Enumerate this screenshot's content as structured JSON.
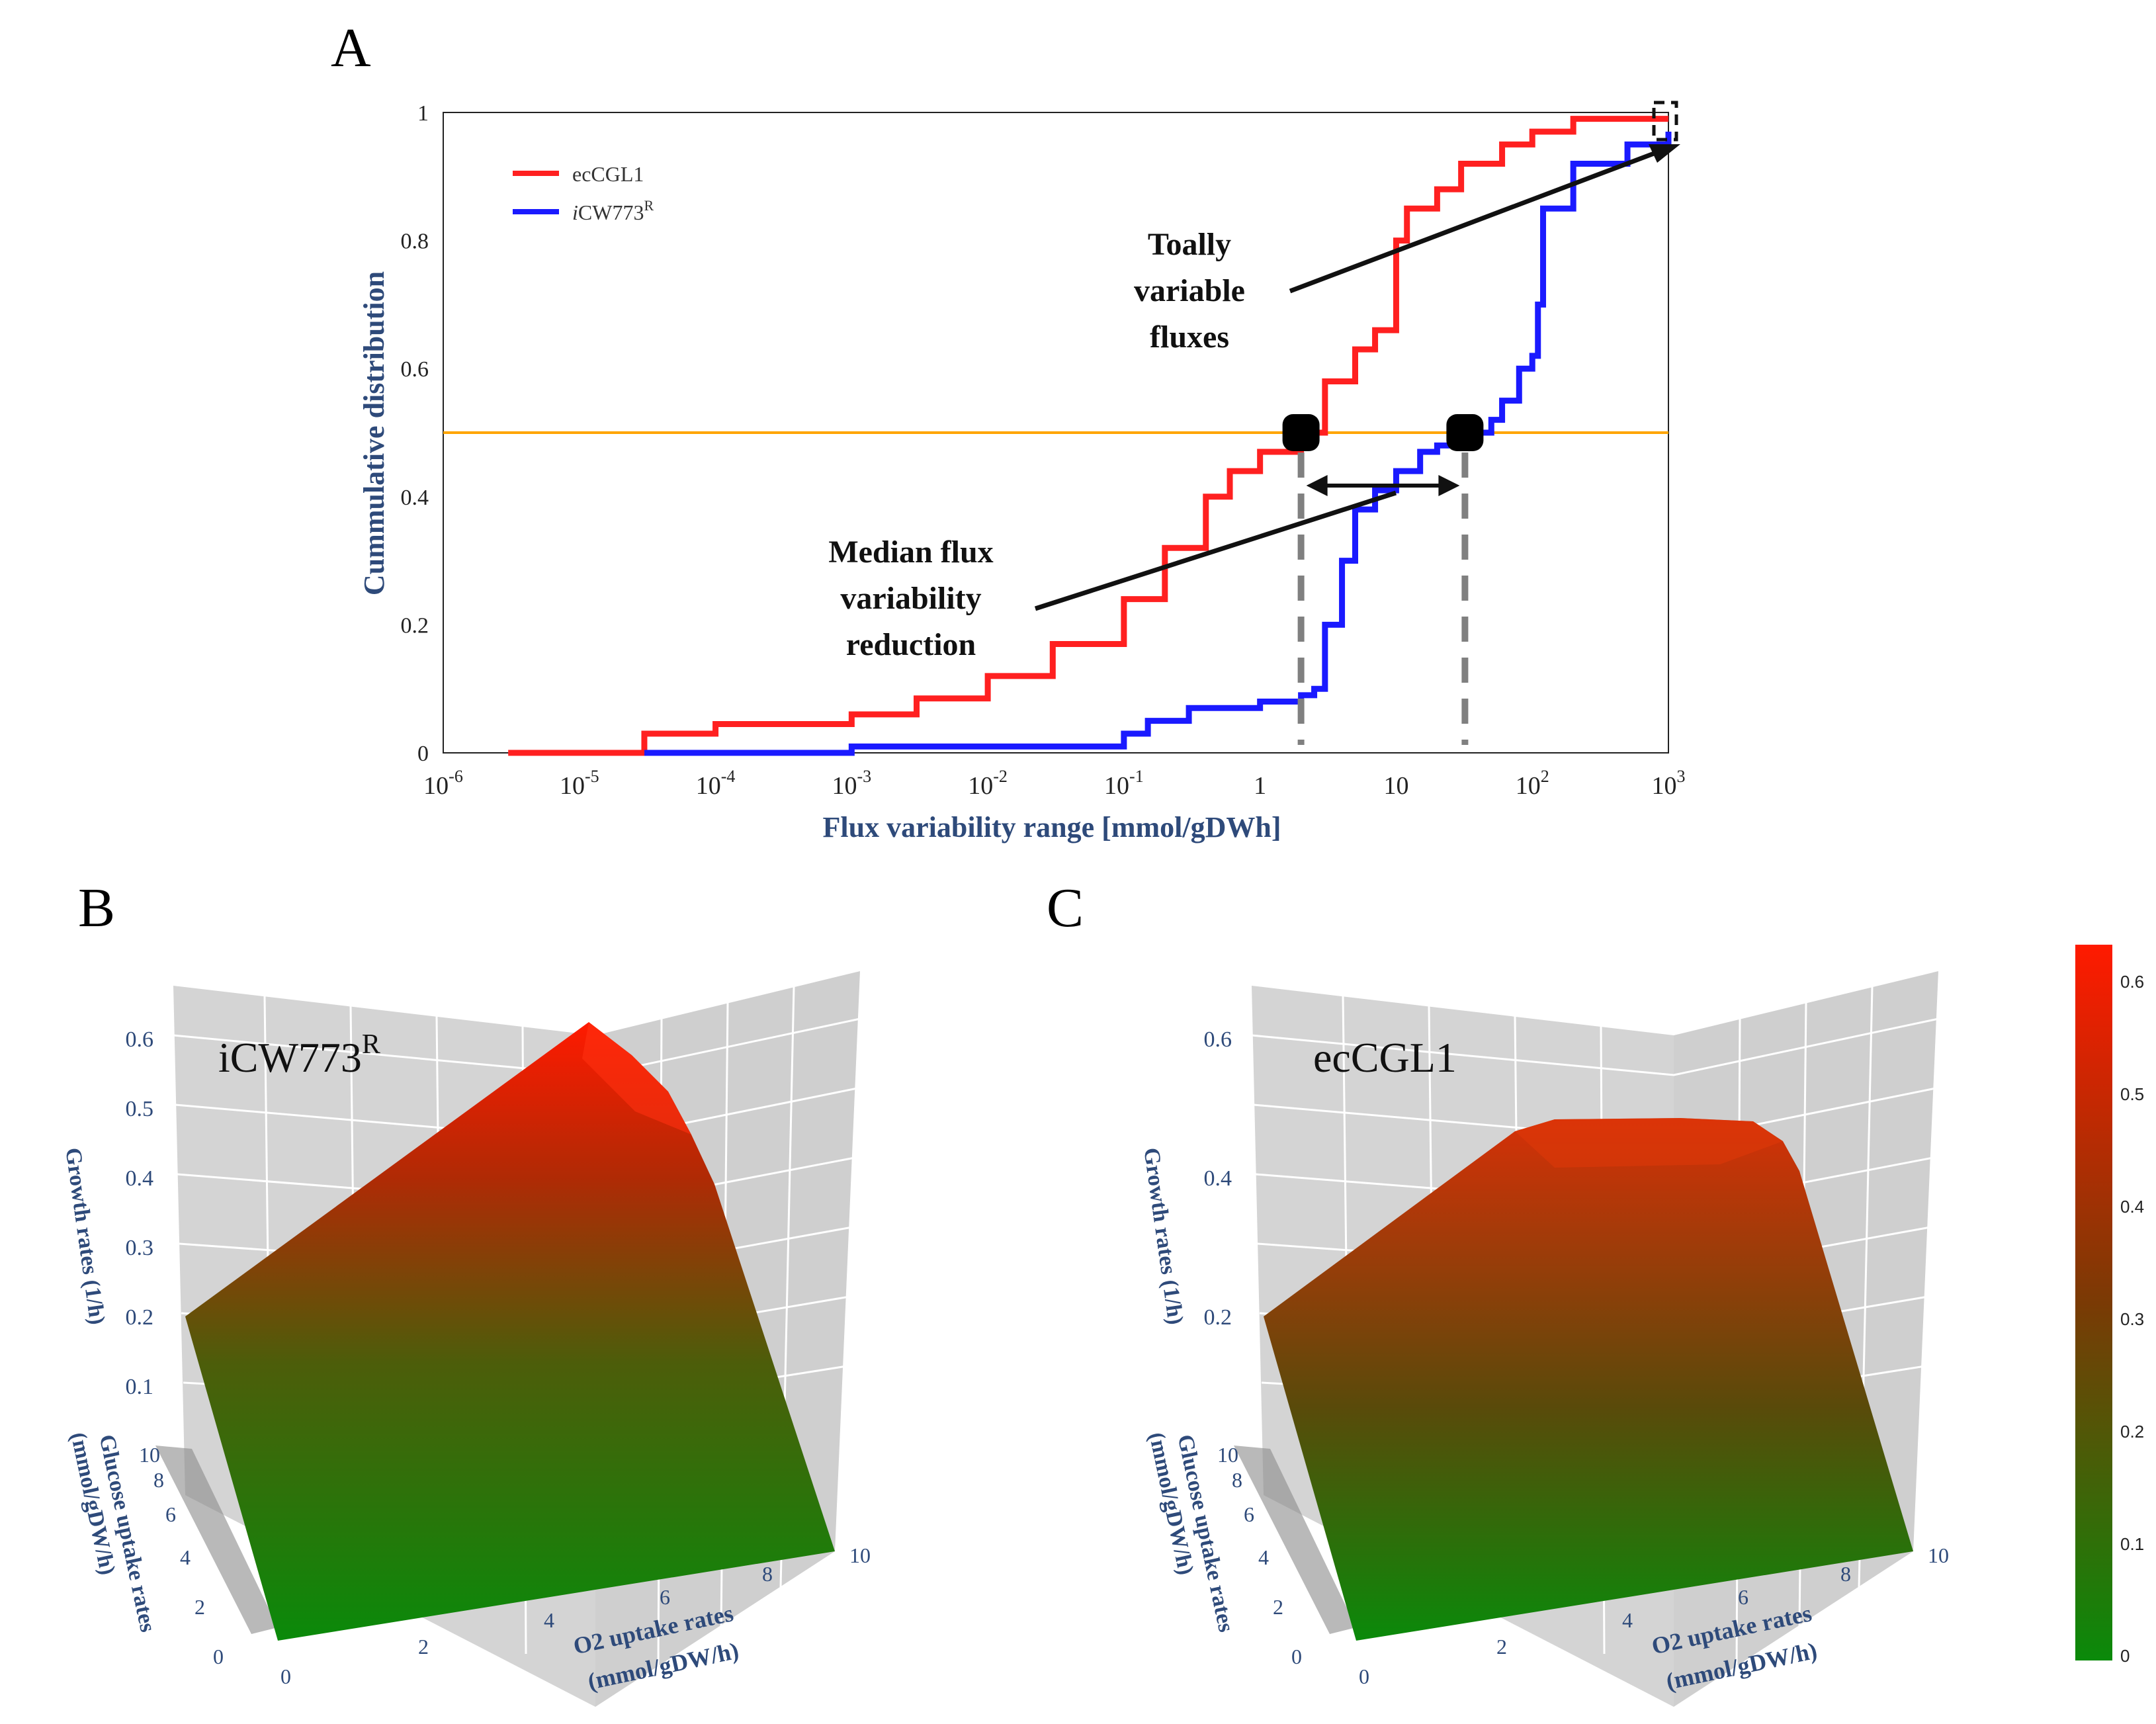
{
  "panel_labels": {
    "a": "A",
    "b": "B",
    "c": "C"
  },
  "colors": {
    "ecCGL1": "#ff2020",
    "iCW773R": "#1a1aff",
    "median_line": "#ffa500",
    "axis_label": "#2e4a7a",
    "surface_low": "#0a8a0a",
    "surface_high": "#ff1a00",
    "wall": "#d4d4d4"
  },
  "annotations": {
    "total_line1": "Toally",
    "total_line2": "variable",
    "total_line3": "fluxes",
    "median_line1": "Median flux",
    "median_line2": "variability",
    "median_line3": "reduction"
  },
  "panel_b": {
    "model_name": "iCW773",
    "model_sup": "R",
    "z_ticks": [
      "0.1",
      "0.2",
      "0.3",
      "0.4",
      "0.5",
      "0.6"
    ],
    "z_label": "Growth rates (1/h)",
    "y_ticks": [
      "0",
      "2",
      "4",
      "6",
      "8",
      "10"
    ],
    "y_label_line1": "Glucose uptake rates",
    "y_label_line2": "(mmol/gDW/h)",
    "x_ticks": [
      "0",
      "2",
      "4",
      "6",
      "8",
      "10"
    ],
    "x_label_line1": "O2 uptake rates",
    "x_label_line2": "(mmol/gDW/h)"
  },
  "panel_c": {
    "model_name": "ecCGL1",
    "z_ticks": [
      "0.2",
      "0.4",
      "0.6"
    ],
    "z_label": "Growth rates (1/h)",
    "y_ticks": [
      "0",
      "2",
      "4",
      "6",
      "8",
      "10"
    ],
    "y_label_line1": "Glucose uptake rates",
    "y_label_line2": "(mmol/gDW/h)",
    "x_ticks": [
      "0",
      "2",
      "4",
      "6",
      "8",
      "10"
    ],
    "x_label_line1": "O2 uptake rates",
    "x_label_line2": "(mmol/gDW/h)"
  },
  "colorbar": {
    "ticks": [
      "0",
      "0.1",
      "0.2",
      "0.3",
      "0.4",
      "0.5",
      "0.6"
    ]
  },
  "chart_data": [
    {
      "id": "A",
      "type": "line",
      "xscale": "log",
      "xlim": [
        1e-06,
        1000
      ],
      "ylim": [
        0,
        1
      ],
      "xlabel": "Flux variability range [mmol/gDWh]",
      "ylabel": "Cummulative distribution",
      "y_ticks": [
        "0",
        "0.2",
        "0.4",
        "0.6",
        "0.8",
        "1"
      ],
      "x_tick_bases": [
        "10",
        "10",
        "10",
        "10",
        "10",
        "10",
        "",
        "",
        "10",
        "10"
      ],
      "x_tick_exps": [
        "-6",
        "-5",
        "-4",
        "-3",
        "-2",
        "-1",
        "",
        "",
        "2",
        "3"
      ],
      "x_tick_plain": [
        "",
        "",
        "",
        "",
        "",
        "",
        "1",
        "10",
        "",
        ""
      ],
      "x_tick_values": [
        1e-06,
        1e-05,
        0.0001,
        0.001,
        0.01,
        0.1,
        1,
        10,
        100,
        1000
      ],
      "median_reference": 0.5,
      "legend_position": "top-left",
      "series": [
        {
          "name": "ecCGL1",
          "italic_prefix": "",
          "label": "ecCGL1",
          "sup": "",
          "x": [
            3e-06,
            3e-05,
            3e-05,
            0.0001,
            0.001,
            0.003,
            0.01,
            0.03,
            0.1,
            0.2,
            0.4,
            0.6,
            1,
            2,
            3,
            5,
            7,
            10,
            12,
            20,
            30,
            60,
            100,
            200,
            1000
          ],
          "y": [
            0.0,
            0.0,
            0.03,
            0.045,
            0.06,
            0.085,
            0.12,
            0.17,
            0.24,
            0.32,
            0.4,
            0.44,
            0.47,
            0.5,
            0.58,
            0.63,
            0.66,
            0.8,
            0.85,
            0.88,
            0.92,
            0.95,
            0.97,
            0.99,
            0.99
          ]
        },
        {
          "name": "iCW773R",
          "italic_prefix": "i",
          "label": "CW773",
          "sup": "R",
          "x": [
            3e-05,
            0.001,
            0.1,
            0.15,
            0.3,
            1,
            2,
            2.5,
            3,
            4,
            5,
            7,
            10,
            15,
            20,
            30,
            40,
            50,
            60,
            80,
            100,
            110,
            120,
            200,
            500,
            1000
          ],
          "y": [
            0.0,
            0.01,
            0.03,
            0.05,
            0.07,
            0.08,
            0.09,
            0.1,
            0.2,
            0.3,
            0.38,
            0.41,
            0.44,
            0.47,
            0.48,
            0.49,
            0.5,
            0.52,
            0.55,
            0.6,
            0.62,
            0.7,
            0.85,
            0.92,
            0.95,
            0.97
          ]
        }
      ]
    },
    {
      "id": "B",
      "type": "surface",
      "title": "iCW773R",
      "x_axis": "O2 uptake rates (mmol/gDW/h)",
      "y_axis": "Glucose uptake rates (mmol/gDW/h)",
      "z_axis": "Growth rates (1/h)",
      "xlim": [
        0,
        10
      ],
      "ylim": [
        0,
        10
      ],
      "zlim": [
        0,
        0.63
      ],
      "peak_growth": 0.62
    },
    {
      "id": "C",
      "type": "surface",
      "title": "ecCGL1",
      "x_axis": "O2 uptake rates (mmol/gDW/h)",
      "y_axis": "Glucose uptake rates (mmol/gDW/h)",
      "z_axis": "Growth rates (1/h)",
      "xlim": [
        0,
        10
      ],
      "ylim": [
        0,
        10
      ],
      "zlim": [
        0,
        0.63
      ],
      "plateau_growth": 0.47
    }
  ]
}
